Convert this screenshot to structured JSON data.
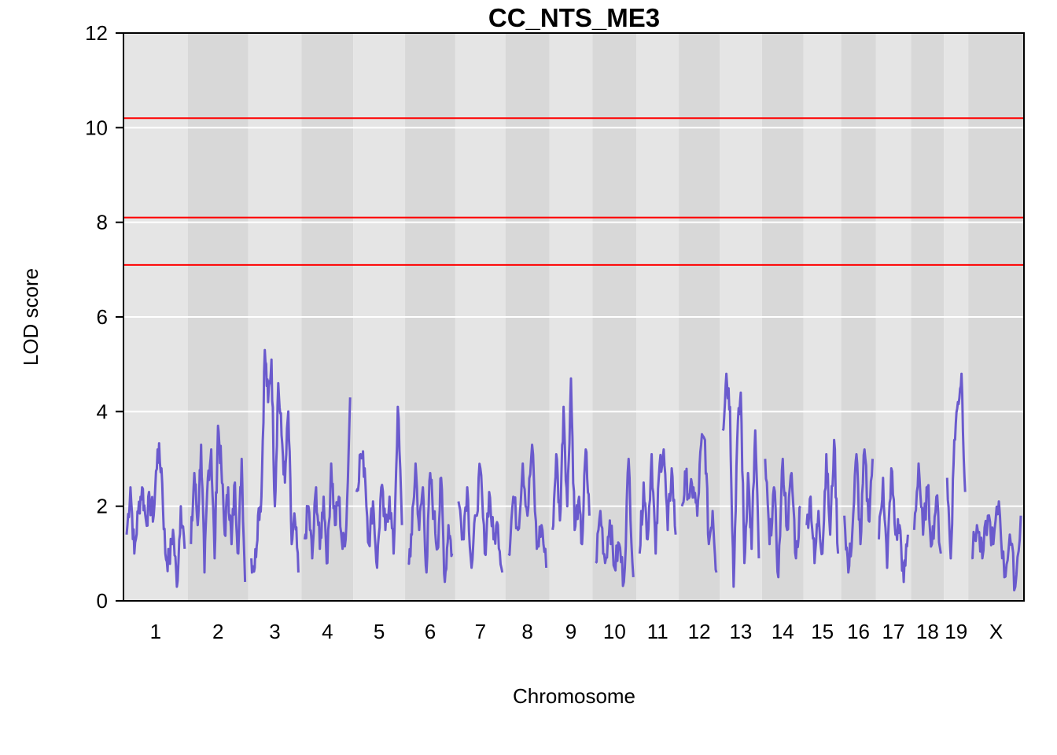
{
  "chart_data": {
    "type": "line",
    "title": "CC_NTS_ME3",
    "xlabel": "Chromosome",
    "ylabel": "LOD score",
    "ylim": [
      0,
      12
    ],
    "yticks": [
      0,
      2,
      4,
      6,
      8,
      10,
      12
    ],
    "grid": true,
    "series_color": "#6a5acd",
    "threshold_color": "#ff0000",
    "thresholds": [
      10.2,
      8.1,
      7.1
    ],
    "chromosomes": [
      {
        "label": "1",
        "peaks": [
          1.4,
          2.4,
          1.0,
          1.9,
          2.4,
          1.7,
          2.1,
          1.8,
          3.2,
          2.8,
          1.0,
          0.8,
          1.5,
          0.3,
          2.0,
          1.1
        ]
      },
      {
        "label": "2",
        "peaks": [
          1.2,
          2.7,
          1.6,
          3.3,
          0.6,
          2.6,
          3.2,
          0.9,
          3.7,
          2.8,
          1.4,
          2.4,
          1.2,
          2.5,
          1.0,
          3.0,
          0.4
        ]
      },
      {
        "label": "3",
        "peaks": [
          0.9,
          0.7,
          1.8,
          2.2,
          5.3,
          4.2,
          5.1,
          2.0,
          4.6,
          3.5,
          2.5,
          4.0,
          1.2,
          1.7,
          0.6
        ]
      },
      {
        "label": "4",
        "peaks": [
          1.3,
          2.0,
          0.9,
          2.4,
          1.1,
          2.2,
          0.8,
          2.9,
          1.6,
          2.2,
          1.1,
          1.6,
          4.3
        ]
      },
      {
        "label": "5",
        "peaks": [
          2.3,
          3.1,
          2.8,
          1.2,
          2.1,
          0.7,
          2.4,
          1.5,
          2.2,
          1.0,
          4.1,
          1.6
        ]
      },
      {
        "label": "6",
        "peaks": [
          0.8,
          1.4,
          2.9,
          1.5,
          2.4,
          0.6,
          2.7,
          1.8,
          1.1,
          2.6,
          0.4,
          1.6,
          1.0
        ]
      },
      {
        "label": "7",
        "peaks": [
          2.1,
          1.4,
          2.4,
          0.7,
          1.8,
          2.8,
          1.0,
          2.3,
          1.3,
          1.6,
          0.6
        ]
      },
      {
        "label": "8",
        "peaks": [
          1.0,
          2.2,
          1.5,
          2.9,
          1.8,
          3.3,
          1.1,
          1.6,
          0.7
        ]
      },
      {
        "label": "9",
        "peaks": [
          1.5,
          3.1,
          1.7,
          4.1,
          2.0,
          4.7,
          1.5,
          2.1,
          1.2,
          3.2,
          1.8
        ]
      },
      {
        "label": "10",
        "peaks": [
          0.8,
          1.9,
          0.8,
          1.7,
          0.7,
          1.2,
          0.4,
          3.0,
          0.5
        ]
      },
      {
        "label": "11",
        "peaks": [
          1.0,
          2.5,
          1.3,
          3.1,
          1.0,
          2.9,
          3.2,
          1.5,
          2.8,
          1.4
        ]
      },
      {
        "label": "12",
        "peaks": [
          2.0,
          2.6,
          2.2,
          2.4,
          1.8,
          3.3,
          3.4,
          1.2,
          1.9,
          0.6
        ]
      },
      {
        "label": "13",
        "peaks": [
          3.6,
          4.8,
          4.1,
          0.3,
          3.4,
          4.4,
          0.8,
          2.7,
          1.1,
          3.6,
          0.9
        ]
      },
      {
        "label": "14",
        "peaks": [
          3.0,
          1.2,
          2.4,
          0.5,
          3.0,
          1.5,
          2.7,
          0.9,
          2.0
        ]
      },
      {
        "label": "15",
        "peaks": [
          1.6,
          2.2,
          0.8,
          1.9,
          1.0,
          3.1,
          1.4,
          3.4,
          1.0
        ]
      },
      {
        "label": "16",
        "peaks": [
          1.8,
          0.6,
          1.5,
          3.1,
          1.2,
          3.2,
          1.7,
          3.0
        ]
      },
      {
        "label": "17",
        "peaks": [
          1.3,
          2.6,
          0.7,
          2.8,
          1.4,
          1.6,
          0.4,
          1.4
        ]
      },
      {
        "label": "18",
        "peaks": [
          1.5,
          2.9,
          1.4,
          2.4,
          1.2,
          2.2,
          1.0
        ]
      },
      {
        "label": "19",
        "peaks": [
          2.6,
          0.9,
          3.4,
          4.2,
          4.8,
          2.3
        ]
      },
      {
        "label": "X",
        "peaks": [
          0.9,
          1.6,
          0.9,
          1.8,
          1.2,
          2.1,
          0.5,
          1.4,
          0.3,
          1.8
        ]
      }
    ]
  }
}
